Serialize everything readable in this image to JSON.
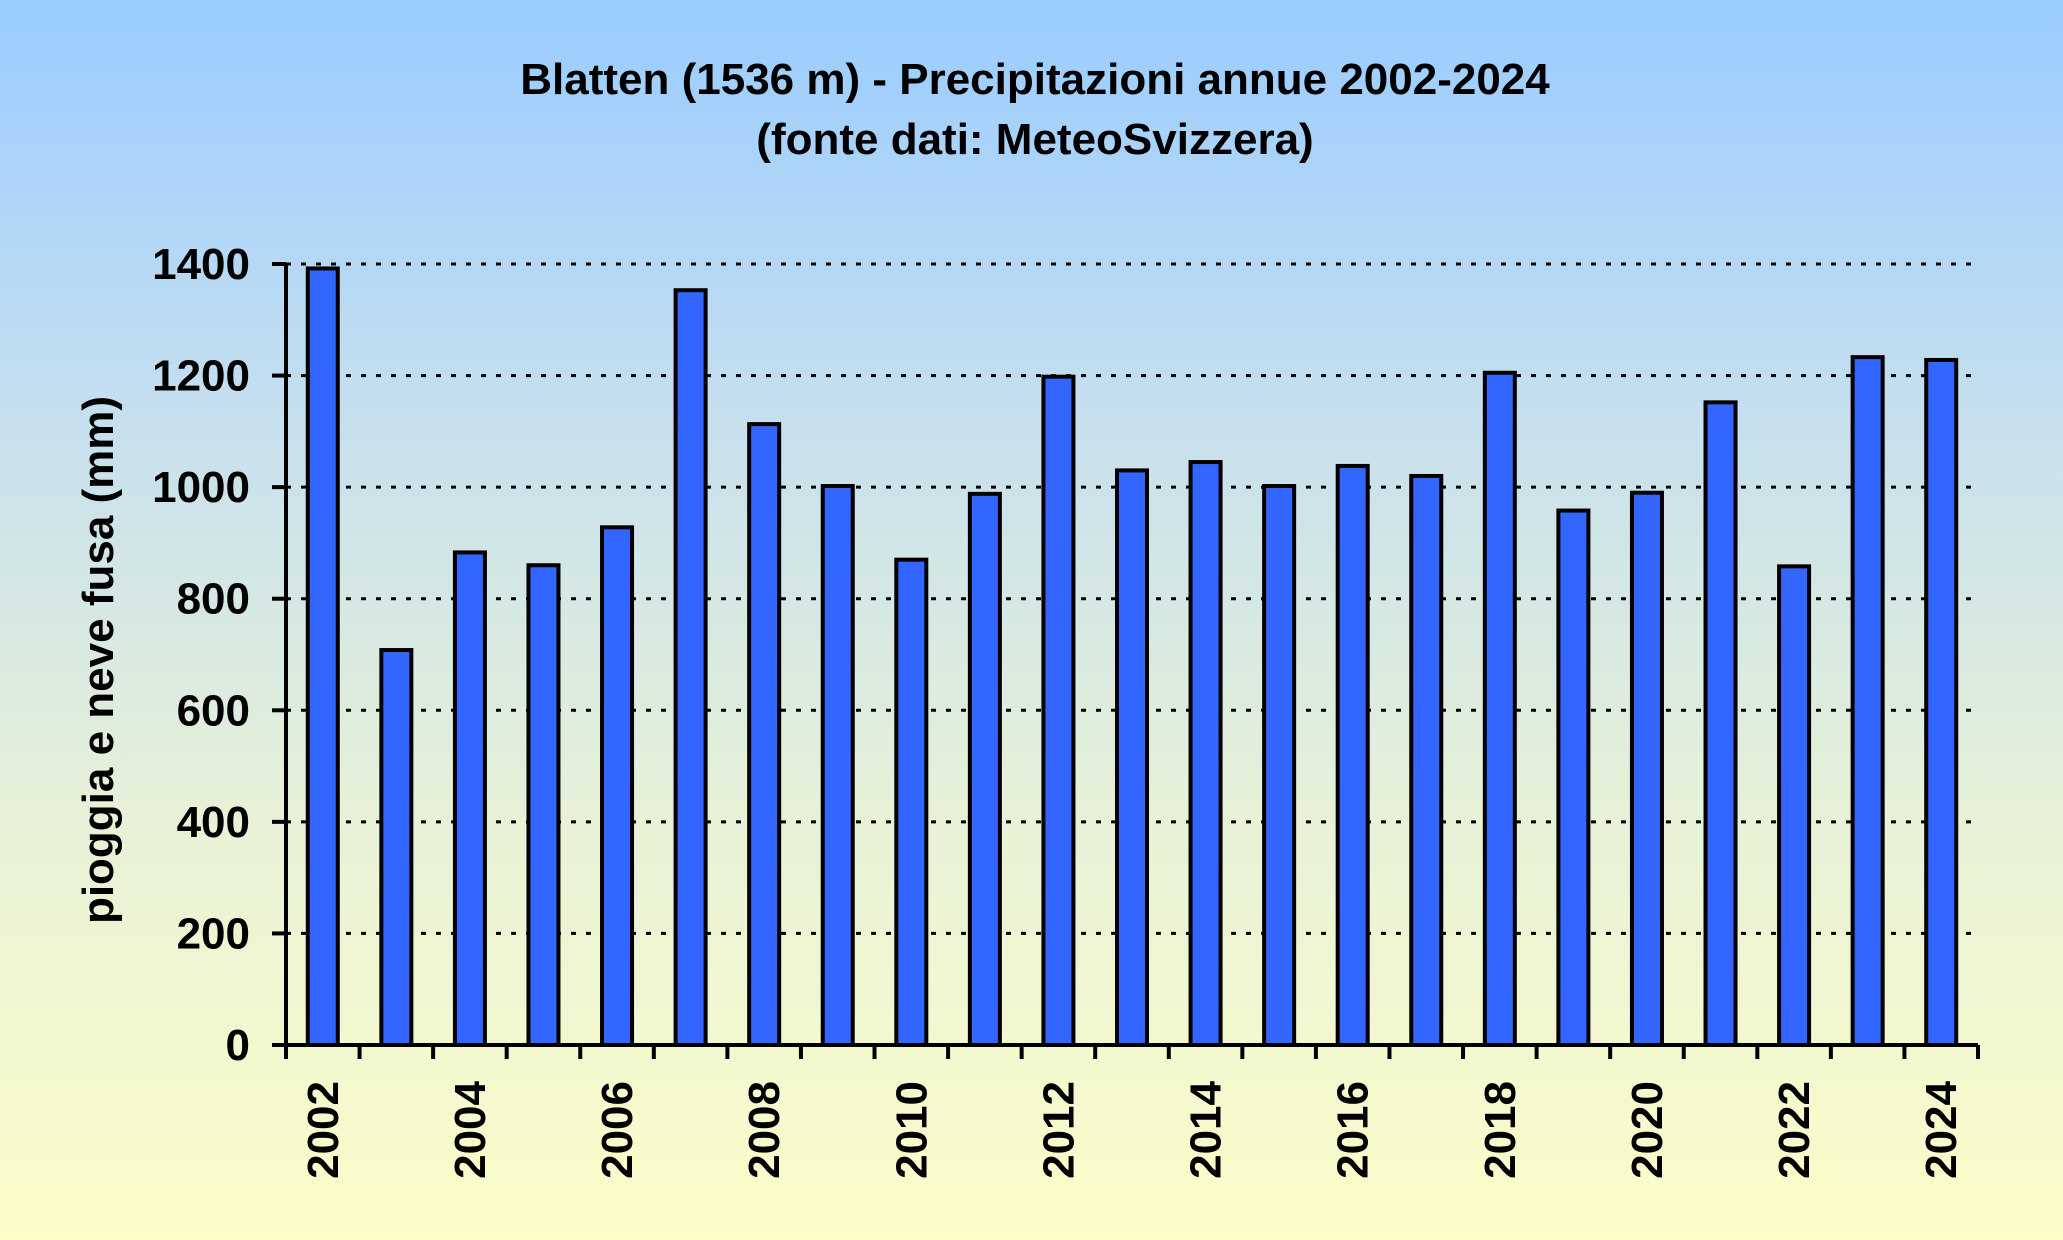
{
  "chart_data": {
    "type": "bar",
    "title": "Blatten (1536 m) - Precipitazioni annue 2002-2024",
    "subtitle": "(fonte dati: MeteoSvizzera)",
    "xlabel": "",
    "ylabel": "pioggia e neve fusa (mm)",
    "ylim": [
      0,
      1400
    ],
    "yticks": [
      "0",
      "200",
      "400",
      "600",
      "800",
      "1000",
      "1200",
      "1400"
    ],
    "grid": true,
    "categories": [
      "2002",
      "2003",
      "2004",
      "2005",
      "2006",
      "2007",
      "2008",
      "2009",
      "2010",
      "2011",
      "2012",
      "2013",
      "2014",
      "2015",
      "2016",
      "2017",
      "2018",
      "2019",
      "2020",
      "2021",
      "2022",
      "2023",
      "2024"
    ],
    "x_tick_labels": [
      "2002",
      "",
      "2004",
      "",
      "2006",
      "",
      "2008",
      "",
      "2010",
      "",
      "2012",
      "",
      "2014",
      "",
      "2016",
      "",
      "2018",
      "",
      "2020",
      "",
      "2022",
      "",
      "2024"
    ],
    "values": [
      1392,
      708,
      883,
      860,
      928,
      1353,
      1113,
      1002,
      870,
      988,
      1198,
      1030,
      1045,
      1002,
      1038,
      1020,
      1205,
      958,
      990,
      1152,
      858,
      1233,
      1228
    ],
    "bar_color": "#3366ff",
    "bar_outline_color": "#000000"
  }
}
